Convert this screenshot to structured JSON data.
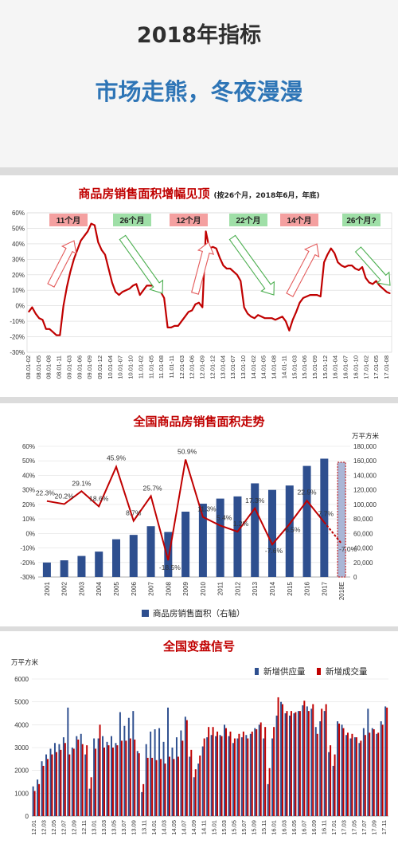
{
  "header": {
    "title": "2018年指标",
    "subtitle": "市场走熊，冬夜漫漫"
  },
  "colors": {
    "title": "#2f2f2f",
    "subtitle": "#2e75b6",
    "chart_title": "#c00000",
    "series_red": "#c00000",
    "series_blue": "#2e4f8f",
    "up_box": "#f4a0a0",
    "down_box": "#9fdfa7"
  },
  "chart_data": [
    {
      "type": "line",
      "title": "商品房销售面积增幅见顶",
      "subtitle": "(按26个月，2018年6月，年底)",
      "y_ticks": [
        "60%",
        "50%",
        "40%",
        "30%",
        "20%",
        "10%",
        "0%",
        "-10%",
        "-20%",
        "-30%"
      ],
      "ylim": [
        -30,
        60
      ],
      "x_tick_labels": [
        "08.01-02",
        "08.01-05",
        "08.01-08",
        "08.01-11",
        "09.01-03",
        "09.01-06",
        "09.01-09",
        "09.01-12",
        "10.01-04",
        "10.01-07",
        "10.01-10",
        "11.01-02",
        "11.01-05",
        "11.01-08",
        "11.01-11",
        "12.01-03",
        "12.01-06",
        "12.01-09",
        "12.01-12",
        "13.01-04",
        "13.01-07",
        "13.01-10",
        "14.01-02",
        "14.01-05",
        "14.01-08",
        "14.01-11",
        "15.01-03",
        "15.01-06",
        "15.01-09",
        "15.01-12",
        "16.01-04",
        "16.01-07",
        "16.01-10",
        "17.01-02",
        "17.01-05",
        "17.01-08"
      ],
      "annotations": [
        "11个月",
        "26个月",
        "12个月",
        "22个月",
        "14个月",
        "26个月?"
      ],
      "values": [
        -4,
        -1,
        -5,
        -8,
        -9,
        -15,
        -15,
        -17,
        -19,
        -19,
        0,
        12,
        22,
        30,
        36,
        42,
        45,
        48,
        53,
        52,
        41,
        36,
        33,
        24,
        15,
        9,
        7,
        9,
        10,
        11,
        13,
        14,
        7,
        10,
        13,
        13,
        13,
        11,
        9,
        5,
        -14,
        -14,
        -13,
        -13,
        -10,
        -7,
        -4,
        -3,
        1,
        2,
        -1,
        48,
        37,
        38,
        37,
        31,
        26,
        24,
        24,
        22,
        20,
        16,
        -1,
        -5,
        -7,
        -8,
        -6,
        -7,
        -8,
        -8,
        -8,
        -9,
        -8,
        -7,
        -10,
        -16,
        -9,
        -4,
        2,
        5,
        6,
        7,
        7,
        7,
        6,
        28,
        33,
        37,
        34,
        28,
        26,
        25,
        26,
        26,
        24,
        23,
        25,
        18,
        15,
        14,
        16,
        13,
        11,
        9,
        8
      ]
    },
    {
      "type": "bar",
      "title": "全国商品房销售面积走势",
      "categories": [
        "2001",
        "2002",
        "2003",
        "2004",
        "2005",
        "2006",
        "2007",
        "2008",
        "2009",
        "2010",
        "2011",
        "2012",
        "2013",
        "2014",
        "2015",
        "2016",
        "2017",
        "2018E"
      ],
      "left_ticks": [
        "60%",
        "50%",
        "40%",
        "30%",
        "20%",
        "10%",
        "0%",
        "-10%",
        "-20%",
        "-30%"
      ],
      "right_ticks": [
        "180,000",
        "160,000",
        "140,000",
        "120,000",
        "100,000",
        "80,000",
        "60,000",
        "40,000",
        "20,000",
        "0"
      ],
      "ylabel_right": "万平方米",
      "legend": "商品房销售面积（右轴）",
      "series": [
        {
          "kind": "bar",
          "values": [
            20000,
            23000,
            29000,
            35000,
            52000,
            58000,
            70000,
            62000,
            90000,
            101000,
            108000,
            111000,
            129000,
            120000,
            126000,
            153000,
            163000,
            158000
          ]
        },
        {
          "kind": "line",
          "values": [
            22.3,
            20.2,
            29.1,
            18.6,
            45.9,
            8.7,
            25.7,
            -18.5,
            50.9,
            11.3,
            5.4,
            1.2,
            17.3,
            -7.6,
            6.5,
            22.5,
            7.7,
            -7.0
          ]
        }
      ],
      "data_labels": [
        "22.3%",
        "20.2%",
        "29.1%",
        "18.6%",
        "45.9%",
        "8.7%",
        "25.7%",
        "-18.5%",
        "50.9%",
        "11.3%",
        "5.4%",
        "1.2%",
        "17.3%",
        "-7.6%",
        "6.5%",
        "22.5%",
        "7.7%",
        "-7.0%"
      ]
    },
    {
      "type": "bar",
      "title": "全国变盘信号",
      "ylabel": "万平方米",
      "y_ticks": [
        "6000",
        "5000",
        "4000",
        "3000",
        "2000",
        "1000",
        "0"
      ],
      "ylim": [
        0,
        6000
      ],
      "x_tick_labels": [
        "12.01",
        "12.03",
        "12.05",
        "12.07",
        "12.09",
        "12.11",
        "13.01",
        "13.03",
        "13.05",
        "13.07",
        "13.09",
        "13.11",
        "14.01",
        "14.03",
        "14.05",
        "14.07",
        "14.09",
        "14.11",
        "15.01",
        "15.03",
        "15.05",
        "15.07",
        "15.09",
        "15.11",
        "16.01",
        "16.03",
        "16.05",
        "16.07",
        "16.09",
        "16.11",
        "17.01",
        "17.03",
        "17.05",
        "17.07",
        "17.09",
        "17.11"
      ],
      "series": [
        {
          "name": "新增供应量",
          "values": [
            1300,
            1600,
            2400,
            2700,
            2950,
            3200,
            3150,
            3450,
            4750,
            3000,
            3500,
            3600,
            2700,
            1200,
            3400,
            3400,
            3500,
            3250,
            3500,
            3200,
            4550,
            3950,
            4300,
            4600,
            2850,
            1050,
            3150,
            3700,
            3800,
            3850,
            3250,
            4750,
            3000,
            3450,
            3750,
            4350,
            2600,
            1700,
            2300,
            3050,
            3450,
            3550,
            3500,
            3550,
            4000,
            3500,
            3200,
            3400,
            3450,
            3550,
            3600,
            3850,
            4000,
            3400,
            1400,
            3400,
            4400,
            5000,
            4500,
            4400,
            4500,
            4600,
            4850,
            4800,
            4700,
            3900,
            4150,
            4600,
            2800,
            2200,
            4150,
            4000,
            3550,
            3400,
            3450,
            3200,
            3850,
            4700,
            3850,
            3600,
            4150,
            4800
          ]
        },
        {
          "name": "新增成交量",
          "values": [
            1100,
            1400,
            2200,
            2500,
            2700,
            2800,
            2900,
            3200,
            2700,
            2950,
            3350,
            3150,
            3100,
            1700,
            2950,
            4000,
            3000,
            3100,
            3000,
            3100,
            3300,
            3300,
            3400,
            3350,
            2750,
            1400,
            2550,
            2550,
            2450,
            2500,
            2300,
            2600,
            2500,
            2600,
            3300,
            4200,
            2900,
            2050,
            2650,
            3400,
            3900,
            3900,
            3700,
            3500,
            3850,
            3700,
            3400,
            3600,
            3700,
            3400,
            3700,
            3800,
            4100,
            3900,
            2100,
            3900,
            5200,
            4900,
            4600,
            4600,
            4550,
            4600,
            5050,
            4600,
            4900,
            3600,
            4700,
            4900,
            3100,
            2700,
            4050,
            3850,
            3650,
            3600,
            3450,
            3300,
            3550,
            3650,
            3800,
            3650,
            4000,
            4750
          ]
        }
      ]
    }
  ]
}
